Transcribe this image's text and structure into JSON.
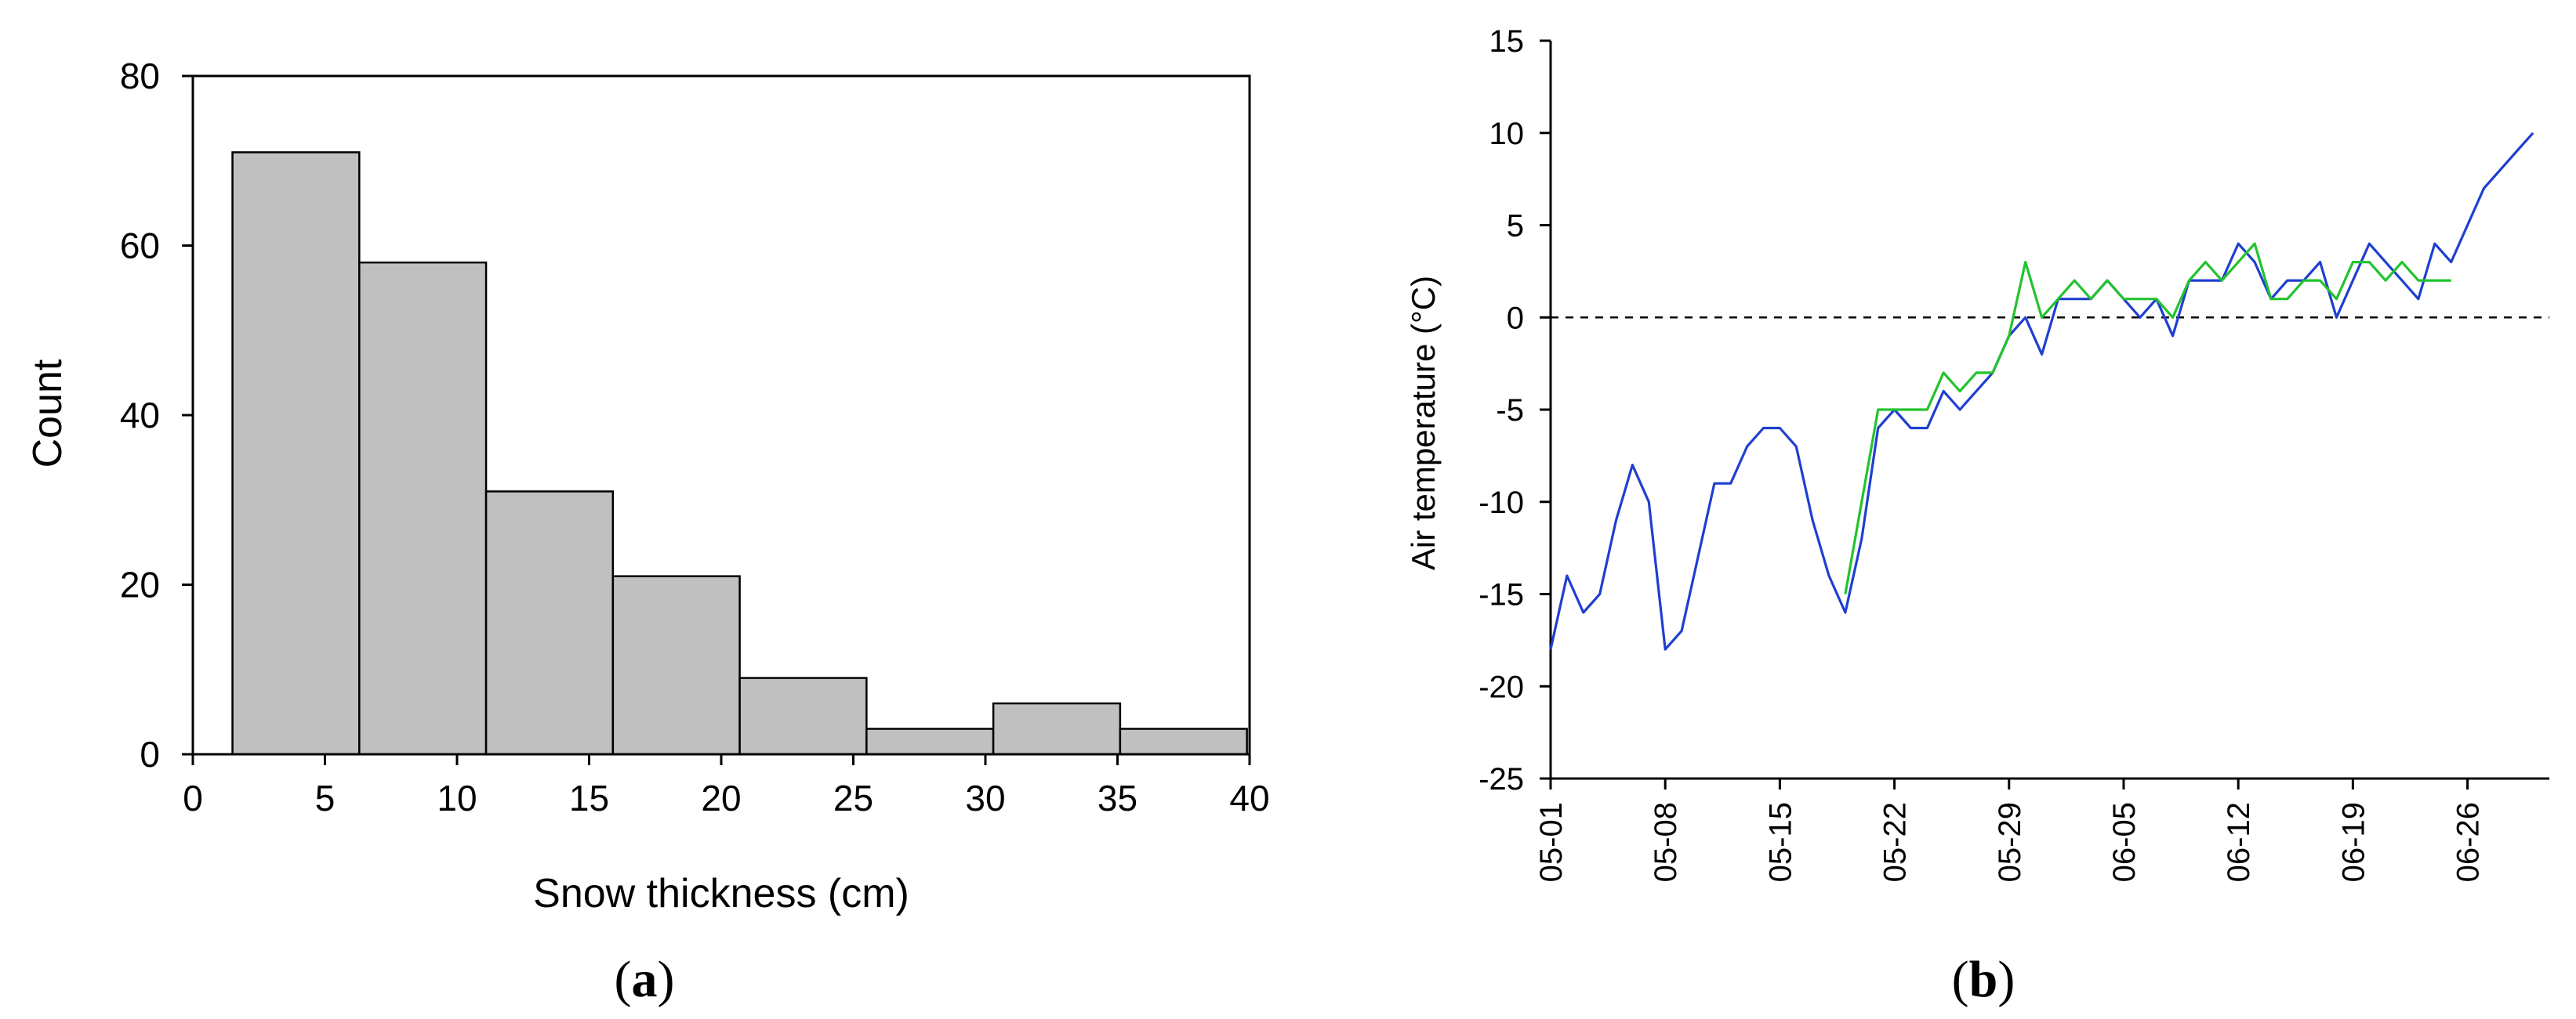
{
  "chart_data": [
    {
      "type": "bar",
      "panel_label_open": "(",
      "panel_label_letter": "a",
      "panel_label_close": ")",
      "xlabel": "Snow thickness (cm)",
      "ylabel": "Count",
      "xlim": [
        0,
        40
      ],
      "ylim": [
        0,
        80
      ],
      "xticks": [
        0,
        5,
        10,
        15,
        20,
        25,
        30,
        35,
        40
      ],
      "yticks": [
        0,
        20,
        40,
        60,
        80
      ],
      "bins": [
        {
          "from": 1.5,
          "to": 6.3,
          "count": 71
        },
        {
          "from": 6.3,
          "to": 11.1,
          "count": 58
        },
        {
          "from": 11.1,
          "to": 15.9,
          "count": 31
        },
        {
          "from": 15.9,
          "to": 20.7,
          "count": 21
        },
        {
          "from": 20.7,
          "to": 25.5,
          "count": 9
        },
        {
          "from": 25.5,
          "to": 30.3,
          "count": 3
        },
        {
          "from": 30.3,
          "to": 35.1,
          "count": 6
        },
        {
          "from": 35.1,
          "to": 39.9,
          "count": 3
        }
      ],
      "bar_color": "#c0c0c0",
      "grid": false
    },
    {
      "type": "line",
      "panel_label_open": "(",
      "panel_label_letter": "b",
      "panel_label_close": ")",
      "xlabel": "",
      "ylabel": "Air temperature  (°C)",
      "xlim": [
        "05-01",
        "07-01"
      ],
      "ylim": [
        -25,
        15
      ],
      "yticks": [
        -25,
        -20,
        -15,
        -10,
        -5,
        0,
        5,
        10,
        15
      ],
      "xticks": [
        "05-01",
        "05-08",
        "05-15",
        "05-22",
        "05-29",
        "06-05",
        "06-12",
        "06-19",
        "06-26"
      ],
      "reference_line": {
        "y": 0,
        "style": "dashed"
      },
      "grid": false,
      "series": [
        {
          "color": "#1f3fd0",
          "x": [
            "05-01",
            "05-02",
            "05-03",
            "05-04",
            "05-05",
            "05-06",
            "05-07",
            "05-08",
            "05-09",
            "05-10",
            "05-11",
            "05-12",
            "05-13",
            "05-14",
            "05-15",
            "05-16",
            "05-17",
            "05-18",
            "05-19",
            "05-20",
            "05-21",
            "05-22",
            "05-23",
            "05-24",
            "05-25",
            "05-26",
            "05-27",
            "05-28",
            "05-29",
            "05-30",
            "05-31",
            "06-01",
            "06-02",
            "06-03",
            "06-04",
            "06-05",
            "06-06",
            "06-07",
            "06-08",
            "06-09",
            "06-10",
            "06-11",
            "06-12",
            "06-13",
            "06-14",
            "06-15",
            "06-16",
            "06-17",
            "06-18",
            "06-19",
            "06-20",
            "06-21",
            "06-22",
            "06-23",
            "06-24",
            "06-25",
            "06-26",
            "06-27",
            "06-28",
            "06-29",
            "06-30"
          ],
          "y": [
            -18,
            -14,
            -16,
            -15,
            -11,
            -8,
            -10,
            -18,
            -17,
            -13,
            -9,
            -9,
            -7,
            -6,
            -6,
            -7,
            -11,
            -14,
            -16,
            -12,
            -6,
            -5,
            -6,
            -6,
            -4,
            -5,
            -4,
            -3,
            -1,
            0,
            -2,
            1,
            1,
            1,
            2,
            1,
            0,
            1,
            -1,
            2,
            2,
            2,
            4,
            3,
            1,
            2,
            2,
            3,
            0,
            2,
            4,
            3,
            2,
            1,
            4,
            3,
            5,
            7,
            8,
            9,
            10
          ]
        },
        {
          "color": "#22c32e",
          "x": [
            "05-19",
            "05-20",
            "05-21",
            "05-22",
            "05-23",
            "05-24",
            "05-25",
            "05-26",
            "05-27",
            "05-28",
            "05-29",
            "05-30",
            "05-31",
            "06-01",
            "06-02",
            "06-03",
            "06-04",
            "06-05",
            "06-06",
            "06-07",
            "06-08",
            "06-09",
            "06-10",
            "06-11",
            "06-12",
            "06-13",
            "06-14",
            "06-15",
            "06-16",
            "06-17",
            "06-18",
            "06-19",
            "06-20",
            "06-21",
            "06-22",
            "06-23",
            "06-24",
            "06-25"
          ],
          "y": [
            -15,
            -10,
            -5,
            -5,
            -5,
            -5,
            -3,
            -4,
            -3,
            -3,
            -1,
            3,
            0,
            1,
            2,
            1,
            2,
            1,
            1,
            1,
            0,
            2,
            3,
            2,
            3,
            4,
            1,
            1,
            2,
            2,
            1,
            3,
            3,
            2,
            3,
            2,
            2,
            2
          ]
        }
      ]
    }
  ]
}
